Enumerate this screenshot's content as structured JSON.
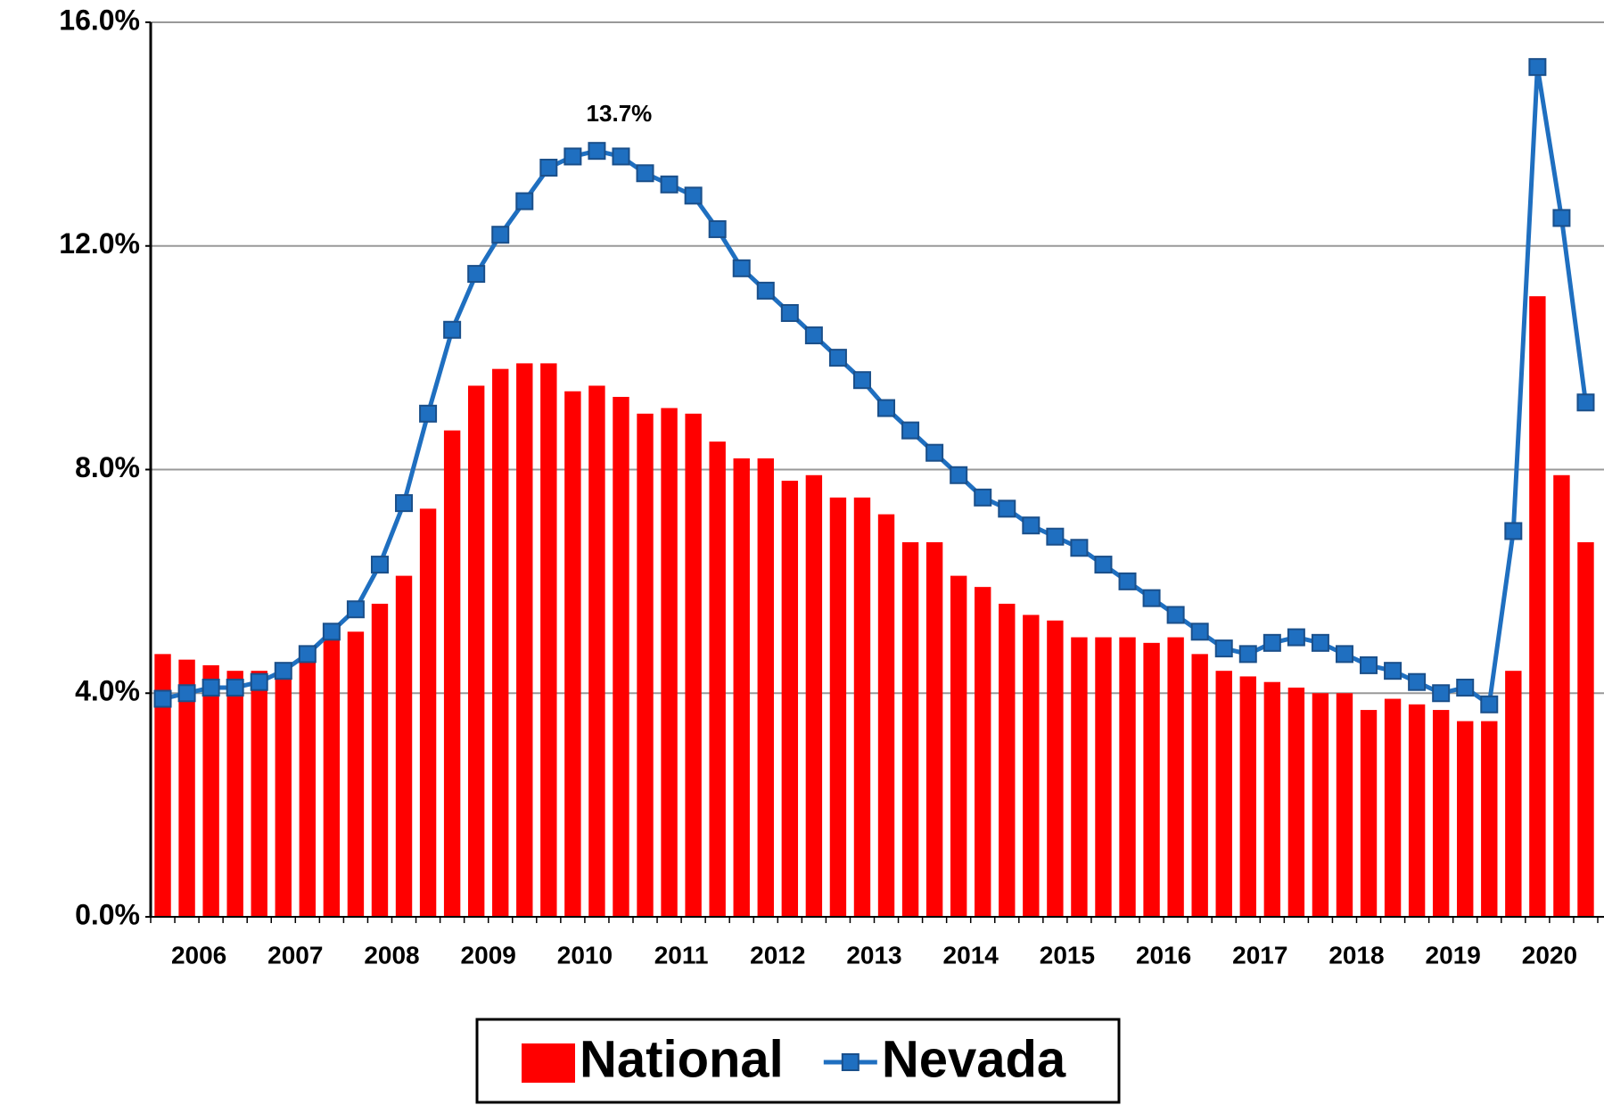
{
  "chart_data": {
    "type": "bar_line",
    "categories": [
      "2006",
      null,
      null,
      null,
      "2007",
      null,
      null,
      null,
      "2008",
      null,
      null,
      null,
      "2009",
      null,
      null,
      null,
      "2010",
      null,
      null,
      null,
      "2011",
      null,
      null,
      null,
      "2012",
      null,
      null,
      null,
      "2013",
      null,
      null,
      null,
      "2014",
      null,
      null,
      null,
      "2015",
      null,
      null,
      null,
      "2016",
      null,
      null,
      null,
      "2017",
      null,
      null,
      null,
      "2018",
      null,
      null,
      null,
      "2019",
      null,
      null,
      null,
      "2020",
      null,
      null,
      null
    ],
    "series": [
      {
        "name": "National",
        "kind": "bar",
        "color": "#ff0000",
        "values": [
          4.7,
          4.6,
          4.5,
          4.4,
          4.4,
          4.5,
          4.6,
          5.0,
          5.1,
          5.6,
          6.1,
          7.3,
          8.7,
          9.5,
          9.8,
          9.9,
          9.9,
          9.4,
          9.5,
          9.3,
          9.0,
          9.1,
          9.0,
          8.5,
          8.2,
          8.2,
          7.8,
          7.9,
          7.5,
          7.5,
          7.2,
          6.7,
          6.7,
          6.1,
          5.9,
          5.6,
          5.4,
          5.3,
          5.0,
          5.0,
          5.0,
          4.9,
          5.0,
          4.7,
          4.4,
          4.3,
          4.2,
          4.1,
          4.0,
          4.0,
          3.7,
          3.9,
          3.8,
          3.7,
          3.5,
          3.5,
          4.4,
          11.1,
          7.9,
          6.7
        ]
      },
      {
        "name": "Nevada",
        "kind": "line",
        "color": "#1f6fc0",
        "values": [
          3.9,
          4.0,
          4.1,
          4.1,
          4.2,
          4.4,
          4.7,
          5.1,
          5.5,
          6.3,
          7.4,
          9.0,
          10.5,
          11.5,
          12.2,
          12.8,
          13.4,
          13.6,
          13.7,
          13.6,
          13.3,
          13.1,
          12.9,
          12.3,
          11.6,
          11.2,
          10.8,
          10.4,
          10.0,
          9.6,
          9.1,
          8.7,
          8.3,
          7.9,
          7.5,
          7.3,
          7.0,
          6.8,
          6.6,
          6.3,
          6.0,
          5.7,
          5.4,
          5.1,
          4.8,
          4.7,
          4.9,
          5.0,
          4.9,
          4.7,
          4.5,
          4.4,
          4.2,
          4.0,
          4.1,
          3.8,
          6.9,
          15.2,
          12.5,
          9.2
        ],
        "value_labels": [
          null,
          null,
          null,
          null,
          null,
          null,
          null,
          null,
          null,
          null,
          null,
          null,
          null,
          null,
          null,
          null,
          null,
          null,
          "13.7%",
          null,
          null,
          null,
          null,
          null,
          null,
          null,
          null,
          null,
          null,
          null,
          null,
          null,
          null,
          null,
          null,
          null,
          null,
          null,
          null,
          null,
          null,
          null,
          null,
          null,
          null,
          null,
          null,
          null,
          null,
          null,
          null,
          null,
          null,
          null,
          null,
          null,
          null,
          null,
          null,
          null
        ]
      }
    ],
    "ylim": [
      0,
      16
    ],
    "yticks": [
      {
        "value": 0,
        "label": "0.0%"
      },
      {
        "value": 4,
        "label": "4.0%"
      },
      {
        "value": 8,
        "label": "8.0%"
      },
      {
        "value": 12,
        "label": "12.0%"
      },
      {
        "value": 16,
        "label": "16.0%"
      }
    ],
    "grid": true,
    "legend": "bottom"
  }
}
